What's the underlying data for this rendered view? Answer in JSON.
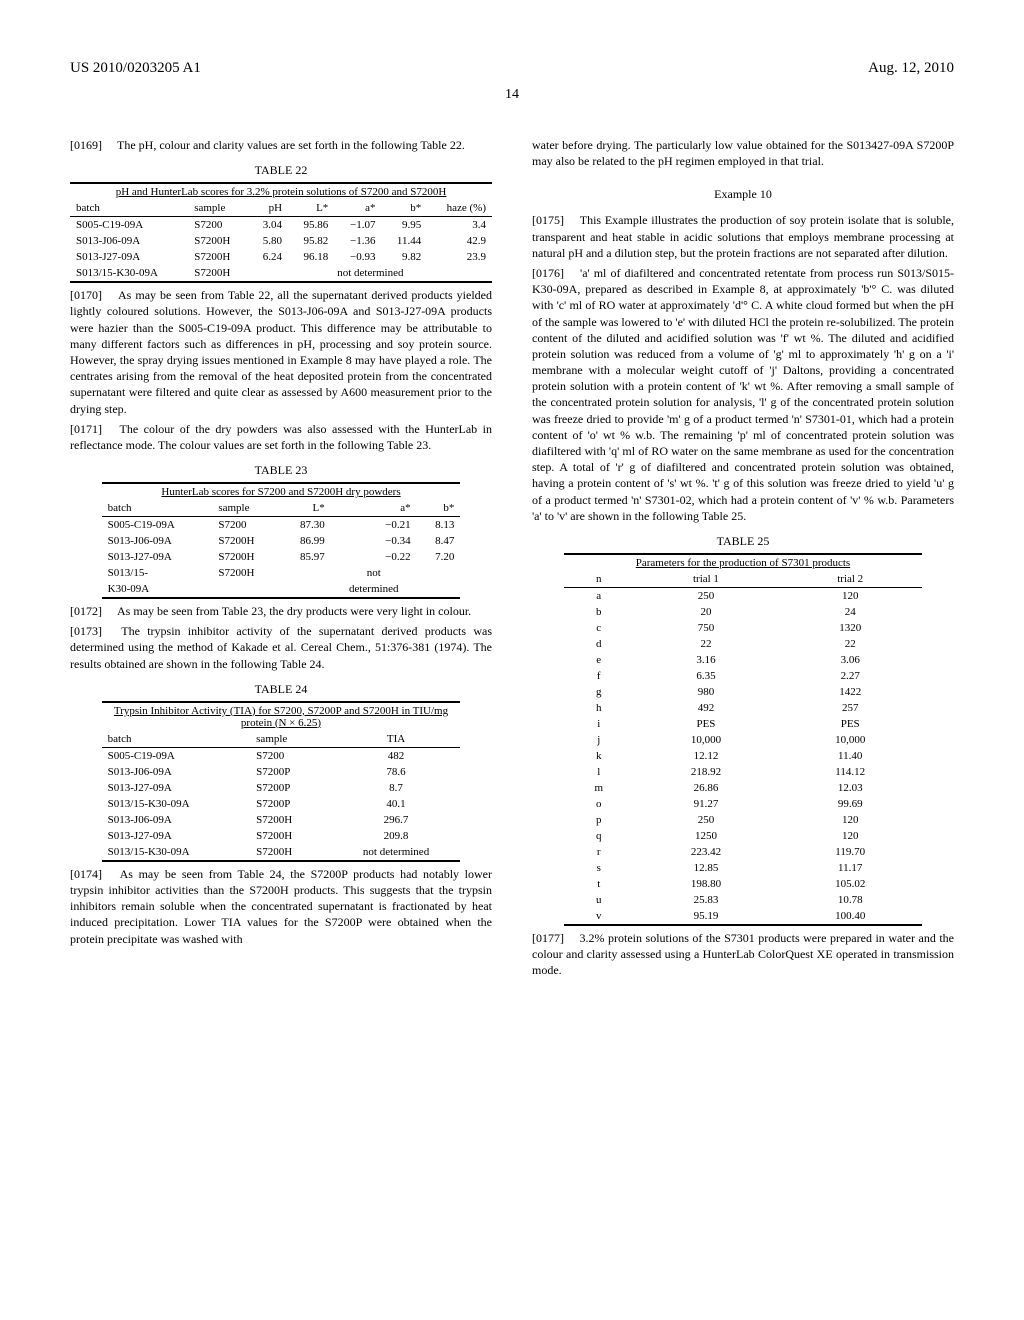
{
  "header": {
    "left": "US 2010/0203205 A1",
    "right": "Aug. 12, 2010",
    "page": "14"
  },
  "left_column": {
    "p0169": "[0169]  The pH, colour and clarity values are set forth in the following Table 22.",
    "table22": {
      "label": "TABLE 22",
      "caption": "pH and HunterLab scores for 3.2% protein solutions of S7200 and S7200H",
      "headers": [
        "batch",
        "sample",
        "pH",
        "L*",
        "a*",
        "b*",
        "haze (%)"
      ],
      "rows": [
        [
          "S005-C19-09A",
          "S7200",
          "3.04",
          "95.86",
          "−1.07",
          "9.95",
          "3.4"
        ],
        [
          "S013-J06-09A",
          "S7200H",
          "5.80",
          "95.82",
          "−1.36",
          "11.44",
          "42.9"
        ],
        [
          "S013-J27-09A",
          "S7200H",
          "6.24",
          "96.18",
          "−0.93",
          "9.82",
          "23.9"
        ]
      ],
      "last_row": [
        "S013/15-K30-09A",
        "S7200H"
      ],
      "last_row_note": "not determined"
    },
    "p0170": "[0170]  As may be seen from Table 22, all the supernatant derived products yielded lightly coloured solutions. However, the S013-J06-09A and S013-J27-09A products were hazier than the S005-C19-09A product. This difference may be attributable to many different factors such as differences in pH, processing and soy protein source. However, the spray drying issues mentioned in Example 8 may have played a role. The centrates arising from the removal of the heat deposited protein from the concentrated supernatant were filtered and quite clear as assessed by A600 measurement prior to the drying step.",
    "p0171": "[0171]  The colour of the dry powders was also assessed with the HunterLab in reflectance mode. The colour values are set forth in the following Table 23.",
    "table23": {
      "label": "TABLE 23",
      "caption": "HunterLab scores for S7200 and S7200H dry powders",
      "headers": [
        "batch",
        "sample",
        "L*",
        "a*",
        "b*"
      ],
      "rows": [
        [
          "S005-C19-09A",
          "S7200",
          "87.30",
          "−0.21",
          "8.13"
        ],
        [
          "S013-J06-09A",
          "S7200H",
          "86.99",
          "−0.34",
          "8.47"
        ],
        [
          "S013-J27-09A",
          "S7200H",
          "85.97",
          "−0.22",
          "7.20"
        ]
      ],
      "last_row_a": [
        "S013/15-",
        "S7200H",
        "",
        "not",
        ""
      ],
      "last_row_b": [
        "K30-09A",
        "",
        "",
        "determined",
        ""
      ]
    },
    "p0172": "[0172]  As may be seen from Table 23, the dry products were very light in colour.",
    "p0173": "[0173]  The trypsin inhibitor activity of the supernatant derived products was determined using the method of Kakade et al. Cereal Chem., 51:376-381 (1974). The results obtained are shown in the following Table 24.",
    "table24": {
      "label": "TABLE 24",
      "caption": "Trypsin Inhibitor Activity (TIA) for S7200, S7200P and S7200H in TIU/mg protein (N × 6.25)",
      "headers": [
        "batch",
        "sample",
        "TIA"
      ],
      "rows": [
        [
          "S005-C19-09A",
          "S7200",
          "482"
        ],
        [
          "S013-J06-09A",
          "S7200P",
          "78.6"
        ],
        [
          "S013-J27-09A",
          "S7200P",
          "8.7"
        ],
        [
          "S013/15-K30-09A",
          "S7200P",
          "40.1"
        ],
        [
          "S013-J06-09A",
          "S7200H",
          "296.7"
        ],
        [
          "S013-J27-09A",
          "S7200H",
          "209.8"
        ],
        [
          "S013/15-K30-09A",
          "S7200H",
          "not determined"
        ]
      ]
    },
    "p0174": "[0174]  As may be seen from Table 24, the S7200P products had notably lower trypsin inhibitor activities than the S7200H products. This suggests that the trypsin inhibitors remain soluble when the concentrated supernatant is fractionated by heat induced precipitation. Lower TIA values for the S7200P were obtained when the protein precipitate was washed with"
  },
  "right_column": {
    "p_cont": "water before drying. The particularly low value obtained for the S013427-09A S7200P may also be related to the pH regimen employed in that trial.",
    "example_heading": "Example 10",
    "p0175": "[0175]  This Example illustrates the production of soy protein isolate that is soluble, transparent and heat stable in acidic solutions that employs membrane processing at natural pH and a dilution step, but the protein fractions are not separated after dilution.",
    "p0176": "[0176]  'a' ml of diafiltered and concentrated retentate from process run S013/S015-K30-09A, prepared as described in Example 8, at approximately 'b'° C. was diluted with 'c' ml of RO water at approximately 'd'° C. A white cloud formed but when the pH of the sample was lowered to 'e' with diluted HCl the protein re-solubilized. The protein content of the diluted and acidified solution was 'f' wt %. The diluted and acidified protein solution was reduced from a volume of 'g' ml to approximately 'h' g on a 'i' membrane with a molecular weight cutoff of 'j' Daltons, providing a concentrated protein solution with a protein content of 'k' wt %. After removing a small sample of the concentrated protein solution for analysis, 'l' g of the concentrated protein solution was freeze dried to provide 'm' g of a product termed 'n' S7301-01, which had a protein content of 'o' wt % w.b. The remaining 'p' ml of concentrated protein solution was diafiltered with 'q' ml of RO water on the same membrane as used for the concentration step. A total of 'r' g of diafiltered and concentrated protein solution was obtained, having a protein content of 's' wt %. 't' g of this solution was freeze dried to yield 'u' g of a product termed 'n' S7301-02, which had a protein content of 'v' % w.b. Parameters 'a' to 'v' are shown in the following Table 25.",
    "table25": {
      "label": "TABLE 25",
      "caption": "Parameters for the production of S7301 products",
      "headers": [
        "n",
        "trial 1",
        "trial 2"
      ],
      "rows": [
        [
          "a",
          "250",
          "120"
        ],
        [
          "b",
          "20",
          "24"
        ],
        [
          "c",
          "750",
          "1320"
        ],
        [
          "d",
          "22",
          "22"
        ],
        [
          "e",
          "3.16",
          "3.06"
        ],
        [
          "f",
          "6.35",
          "2.27"
        ],
        [
          "g",
          "980",
          "1422"
        ],
        [
          "h",
          "492",
          "257"
        ],
        [
          "i",
          "PES",
          "PES"
        ],
        [
          "j",
          "10,000",
          "10,000"
        ],
        [
          "k",
          "12.12",
          "11.40"
        ],
        [
          "l",
          "218.92",
          "114.12"
        ],
        [
          "m",
          "26.86",
          "12.03"
        ],
        [
          "o",
          "91.27",
          "99.69"
        ],
        [
          "p",
          "250",
          "120"
        ],
        [
          "q",
          "1250",
          "120"
        ],
        [
          "r",
          "223.42",
          "119.70"
        ],
        [
          "s",
          "12.85",
          "11.17"
        ],
        [
          "t",
          "198.80",
          "105.02"
        ],
        [
          "u",
          "25.83",
          "10.78"
        ],
        [
          "v",
          "95.19",
          "100.40"
        ]
      ]
    },
    "p0177": "[0177]  3.2% protein solutions of the S7301 products were prepared in water and the colour and clarity assessed using a HunterLab ColorQuest XE operated in transmission mode."
  }
}
